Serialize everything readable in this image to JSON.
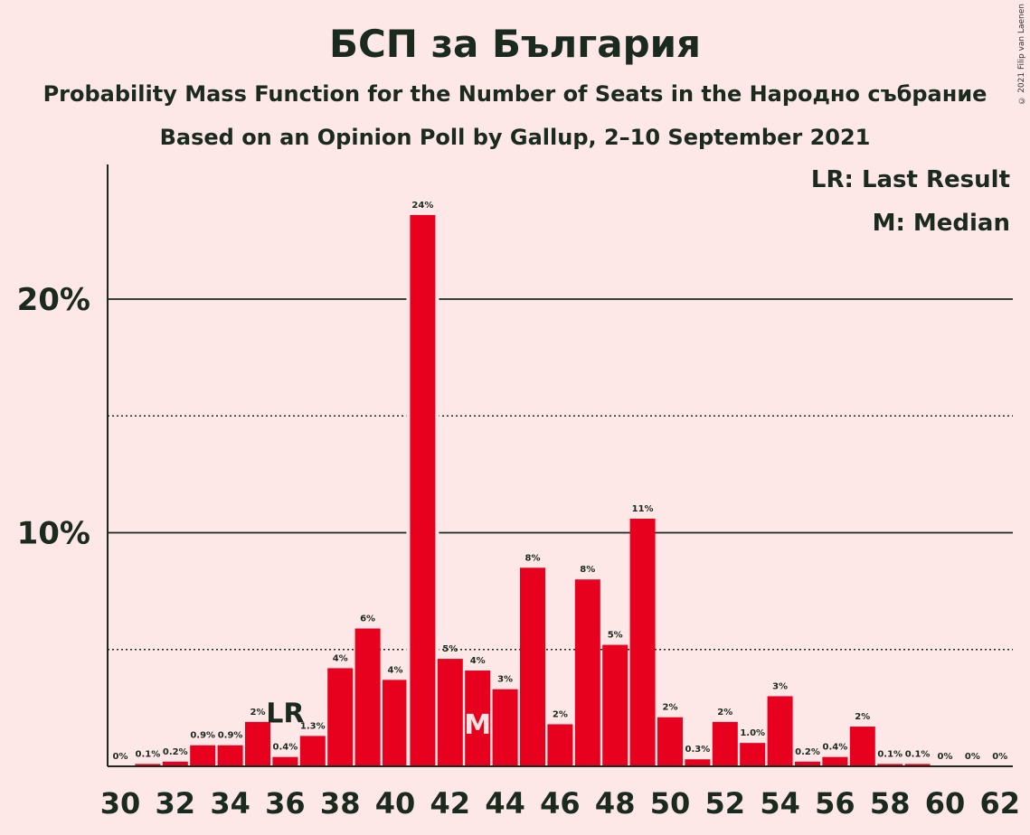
{
  "title": "БСП за България",
  "subtitle_1": "Probability Mass Function for the Number of Seats in the Народно събрание",
  "subtitle_2": "Based on an Opinion Poll by Gallup, 2–10 September 2021",
  "copyright": "© 2021 Filip van Laenen",
  "legend": {
    "last_result": "LR: Last Result",
    "median": "M: Median"
  },
  "colors": {
    "bar": "#e8001f",
    "background": "#fde7e7",
    "text": "#1a2a1f"
  },
  "chart_data": {
    "type": "bar",
    "x": [
      30,
      31,
      32,
      33,
      34,
      35,
      36,
      37,
      38,
      39,
      40,
      41,
      42,
      43,
      44,
      45,
      46,
      47,
      48,
      49,
      50,
      51,
      52,
      53,
      54,
      55,
      56,
      57,
      58,
      59,
      60,
      61,
      62
    ],
    "values": [
      0,
      0.1,
      0.2,
      0.9,
      0.9,
      1.9,
      0.4,
      1.3,
      4.2,
      5.9,
      3.7,
      23.6,
      4.6,
      4.1,
      3.3,
      8.5,
      1.8,
      8.0,
      5.2,
      10.6,
      2.1,
      0.3,
      1.9,
      1.0,
      3.0,
      0.2,
      0.4,
      1.7,
      0.1,
      0.1,
      0,
      0,
      0
    ],
    "data_labels": [
      "0%",
      "0.1%",
      "0.2%",
      "0.9%",
      "0.9%",
      "2%",
      "0.4%",
      "1.3%",
      "4%",
      "6%",
      "4%",
      "24%",
      "5%",
      "4%",
      "3%",
      "8%",
      "2%",
      "8%",
      "5%",
      "11%",
      "2%",
      "0.3%",
      "2%",
      "1.0%",
      "3%",
      "0.2%",
      "0.4%",
      "2%",
      "0.1%",
      "0.1%",
      "0%",
      "0%",
      "0%"
    ],
    "x_tick_labels": [
      "30",
      "32",
      "34",
      "36",
      "38",
      "40",
      "42",
      "44",
      "46",
      "48",
      "50",
      "52",
      "54",
      "56",
      "58",
      "60",
      "62"
    ],
    "y_tick_labels": [
      "10%",
      "20%"
    ],
    "ylim": [
      0,
      25.8
    ],
    "gridlines_solid": [
      10,
      20
    ],
    "gridlines_dotted": [
      5,
      15
    ],
    "last_result_seat": 36,
    "last_result_label": "LR",
    "median_seat": 43,
    "median_label": "M"
  }
}
